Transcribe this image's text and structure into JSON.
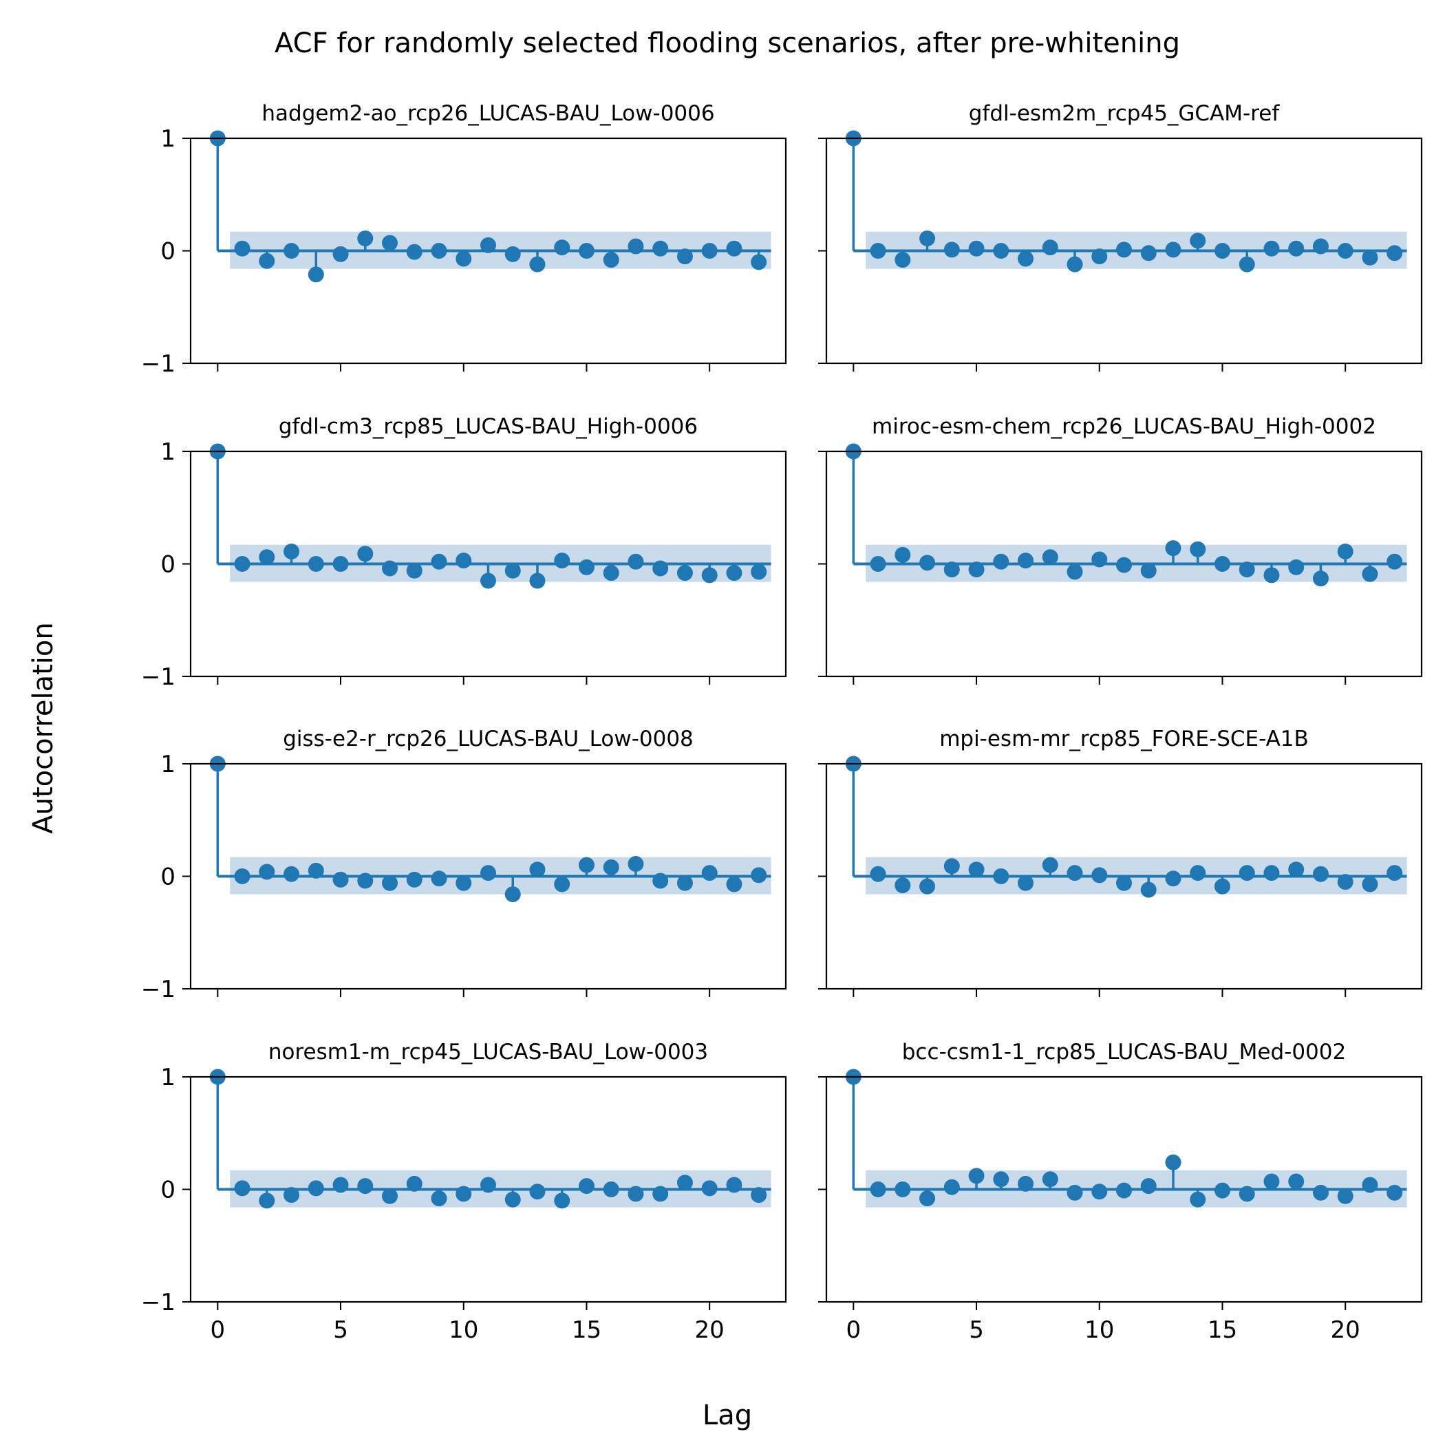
{
  "figure": {
    "title": "ACF for randomly selected flooding scenarios, after pre-whitening",
    "xlabel": "Lag",
    "ylabel": "Autocorrelation"
  },
  "colors": {
    "stem": "#1f77b4",
    "band": "#c6d9ea",
    "axes": "#000000"
  },
  "chart_data": [
    {
      "type": "stem",
      "title": "hadgem2-ao_rcp26_LUCAS-BAU_Low-0006",
      "x": [
        0,
        1,
        2,
        3,
        4,
        5,
        6,
        7,
        8,
        9,
        10,
        11,
        12,
        13,
        14,
        15,
        16,
        17,
        18,
        19,
        20,
        21,
        22
      ],
      "values": [
        1,
        0.02,
        -0.09,
        0.0,
        -0.21,
        -0.03,
        0.11,
        0.07,
        -0.01,
        0.0,
        -0.07,
        0.05,
        -0.03,
        -0.12,
        0.03,
        0.0,
        -0.08,
        0.04,
        0.02,
        -0.05,
        0.0,
        0.02,
        -0.1
      ],
      "confidence_band": [
        -0.16,
        0.17
      ],
      "xlim": [
        -1.1,
        23.1
      ],
      "ylim": [
        -1,
        1
      ],
      "xticks": [
        "0",
        "5",
        "10",
        "15",
        "20"
      ],
      "yticks": [
        "1",
        "0",
        "−1"
      ],
      "grid": false
    },
    {
      "type": "stem",
      "title": "gfdl-esm2m_rcp45_GCAM-ref",
      "x": [
        0,
        1,
        2,
        3,
        4,
        5,
        6,
        7,
        8,
        9,
        10,
        11,
        12,
        13,
        14,
        15,
        16,
        17,
        18,
        19,
        20,
        21,
        22
      ],
      "values": [
        1,
        0.0,
        -0.08,
        0.11,
        0.01,
        0.02,
        0.0,
        -0.07,
        0.03,
        -0.12,
        -0.05,
        0.01,
        -0.02,
        0.01,
        0.09,
        0.0,
        -0.12,
        0.02,
        0.02,
        0.04,
        0.0,
        -0.06,
        -0.02
      ],
      "confidence_band": [
        -0.16,
        0.17
      ],
      "xlim": [
        -1.1,
        23.1
      ],
      "ylim": [
        -1,
        1
      ],
      "xticks": [
        "0",
        "5",
        "10",
        "15",
        "20"
      ],
      "yticks": [
        "1",
        "0",
        "−1"
      ],
      "grid": false
    },
    {
      "type": "stem",
      "title": "gfdl-cm3_rcp85_LUCAS-BAU_High-0006",
      "x": [
        0,
        1,
        2,
        3,
        4,
        5,
        6,
        7,
        8,
        9,
        10,
        11,
        12,
        13,
        14,
        15,
        16,
        17,
        18,
        19,
        20,
        21,
        22
      ],
      "values": [
        1,
        0.0,
        0.06,
        0.11,
        0.0,
        0.0,
        0.09,
        -0.04,
        -0.06,
        0.02,
        0.03,
        -0.15,
        -0.06,
        -0.15,
        0.03,
        -0.03,
        -0.08,
        0.02,
        -0.04,
        -0.08,
        -0.1,
        -0.08,
        -0.07
      ],
      "confidence_band": [
        -0.16,
        0.17
      ],
      "xlim": [
        -1.1,
        23.1
      ],
      "ylim": [
        -1,
        1
      ],
      "xticks": [
        "0",
        "5",
        "10",
        "15",
        "20"
      ],
      "yticks": [
        "1",
        "0",
        "−1"
      ],
      "grid": false
    },
    {
      "type": "stem",
      "title": "miroc-esm-chem_rcp26_LUCAS-BAU_High-0002",
      "x": [
        0,
        1,
        2,
        3,
        4,
        5,
        6,
        7,
        8,
        9,
        10,
        11,
        12,
        13,
        14,
        15,
        16,
        17,
        18,
        19,
        20,
        21,
        22
      ],
      "values": [
        1,
        0.0,
        0.08,
        0.01,
        -0.05,
        -0.05,
        0.02,
        0.03,
        0.06,
        -0.07,
        0.04,
        -0.01,
        -0.06,
        0.14,
        0.13,
        0.0,
        -0.05,
        -0.1,
        -0.03,
        -0.13,
        0.11,
        -0.09,
        0.02
      ],
      "confidence_band": [
        -0.16,
        0.17
      ],
      "xlim": [
        -1.1,
        23.1
      ],
      "ylim": [
        -1,
        1
      ],
      "xticks": [
        "0",
        "5",
        "10",
        "15",
        "20"
      ],
      "yticks": [
        "1",
        "0",
        "−1"
      ],
      "grid": false
    },
    {
      "type": "stem",
      "title": "giss-e2-r_rcp26_LUCAS-BAU_Low-0008",
      "x": [
        0,
        1,
        2,
        3,
        4,
        5,
        6,
        7,
        8,
        9,
        10,
        11,
        12,
        13,
        14,
        15,
        16,
        17,
        18,
        19,
        20,
        21,
        22
      ],
      "values": [
        1,
        0.0,
        0.04,
        0.02,
        0.05,
        -0.03,
        -0.04,
        -0.06,
        -0.03,
        -0.02,
        -0.06,
        0.03,
        -0.16,
        0.06,
        -0.07,
        0.1,
        0.08,
        0.11,
        -0.04,
        -0.06,
        0.03,
        -0.07,
        0.01
      ],
      "confidence_band": [
        -0.16,
        0.17
      ],
      "xlim": [
        -1.1,
        23.1
      ],
      "ylim": [
        -1,
        1
      ],
      "xticks": [
        "0",
        "5",
        "10",
        "15",
        "20"
      ],
      "yticks": [
        "1",
        "0",
        "−1"
      ],
      "grid": false
    },
    {
      "type": "stem",
      "title": "mpi-esm-mr_rcp85_FORE-SCE-A1B",
      "x": [
        0,
        1,
        2,
        3,
        4,
        5,
        6,
        7,
        8,
        9,
        10,
        11,
        12,
        13,
        14,
        15,
        16,
        17,
        18,
        19,
        20,
        21,
        22
      ],
      "values": [
        1,
        0.02,
        -0.08,
        -0.09,
        0.09,
        0.06,
        0.0,
        -0.06,
        0.1,
        0.03,
        0.01,
        -0.06,
        -0.12,
        -0.02,
        0.03,
        -0.09,
        0.03,
        0.03,
        0.06,
        0.02,
        -0.05,
        -0.07,
        0.03
      ],
      "confidence_band": [
        -0.16,
        0.17
      ],
      "xlim": [
        -1.1,
        23.1
      ],
      "ylim": [
        -1,
        1
      ],
      "xticks": [
        "0",
        "5",
        "10",
        "15",
        "20"
      ],
      "yticks": [
        "1",
        "0",
        "−1"
      ],
      "grid": false
    },
    {
      "type": "stem",
      "title": "noresm1-m_rcp45_LUCAS-BAU_Low-0003",
      "x": [
        0,
        1,
        2,
        3,
        4,
        5,
        6,
        7,
        8,
        9,
        10,
        11,
        12,
        13,
        14,
        15,
        16,
        17,
        18,
        19,
        20,
        21,
        22
      ],
      "values": [
        1,
        0.01,
        -0.1,
        -0.05,
        0.01,
        0.04,
        0.03,
        -0.06,
        0.05,
        -0.08,
        -0.04,
        0.04,
        -0.09,
        -0.02,
        -0.1,
        0.03,
        0.0,
        -0.04,
        -0.04,
        0.06,
        0.01,
        0.04,
        -0.05
      ],
      "confidence_band": [
        -0.16,
        0.17
      ],
      "xlim": [
        -1.1,
        23.1
      ],
      "ylim": [
        -1,
        1
      ],
      "xticks": [
        "0",
        "5",
        "10",
        "15",
        "20"
      ],
      "yticks": [
        "1",
        "0",
        "−1"
      ],
      "grid": false
    },
    {
      "type": "stem",
      "title": "bcc-csm1-1_rcp85_LUCAS-BAU_Med-0002",
      "x": [
        0,
        1,
        2,
        3,
        4,
        5,
        6,
        7,
        8,
        9,
        10,
        11,
        12,
        13,
        14,
        15,
        16,
        17,
        18,
        19,
        20,
        21,
        22
      ],
      "values": [
        1,
        0.0,
        0.0,
        -0.08,
        0.02,
        0.12,
        0.09,
        0.05,
        0.09,
        -0.03,
        -0.02,
        -0.01,
        0.03,
        0.24,
        -0.09,
        -0.01,
        -0.04,
        0.07,
        0.07,
        -0.03,
        -0.06,
        0.04,
        -0.03
      ],
      "confidence_band": [
        -0.16,
        0.17
      ],
      "xlim": [
        -1.1,
        23.1
      ],
      "ylim": [
        -1,
        1
      ],
      "xticks": [
        "0",
        "5",
        "10",
        "15",
        "20"
      ],
      "yticks": [
        "1",
        "0",
        "−1"
      ],
      "grid": false
    }
  ]
}
